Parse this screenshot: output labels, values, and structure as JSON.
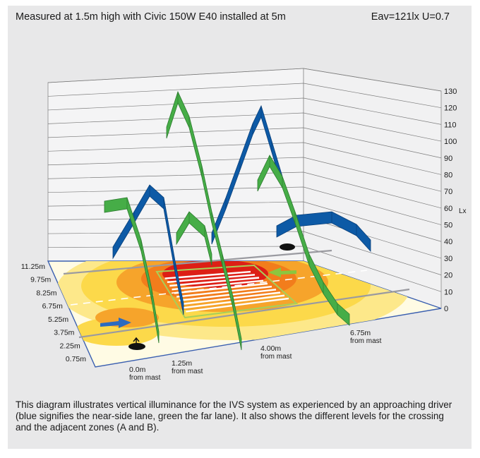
{
  "header": {
    "left": "Measured at 1.5m high with Civic 150W E40 installed at 5m",
    "right": "Eav=121lx  U=0.7"
  },
  "caption": "This diagram illustrates vertical illuminance for the IVS system as experienced by an approaching driver (blue signifies the near-side lane, green the far lane). It also shows the different levels for the crossing and the adjacent zones (A and B).",
  "chart_data": {
    "type": "area",
    "zlabel": "Lx",
    "zlim": [
      0,
      130
    ],
    "z_ticks": [
      0,
      10,
      20,
      30,
      40,
      50,
      60,
      70,
      80,
      90,
      100,
      110,
      120,
      130
    ],
    "y_ticks": [
      "11.25m",
      "9.75m",
      "8.25m",
      "6.75m",
      "5.25m",
      "3.75m",
      "2.25m",
      "0.75m"
    ],
    "x_ticks": [
      {
        "line1": "0.0m",
        "line2": "from mast"
      },
      {
        "line1": "1.25m",
        "line2": "from mast"
      },
      {
        "line1": "4.00m",
        "line2": "from mast"
      },
      {
        "line1": "6.75m",
        "line2": "from mast"
      }
    ],
    "series": [],
    "colors": {
      "blue": "#0d5aa6",
      "green": "#46ad47",
      "red": "#dd1f16",
      "orange": "#f27d1c",
      "yellow": "#fbe36b"
    }
  }
}
